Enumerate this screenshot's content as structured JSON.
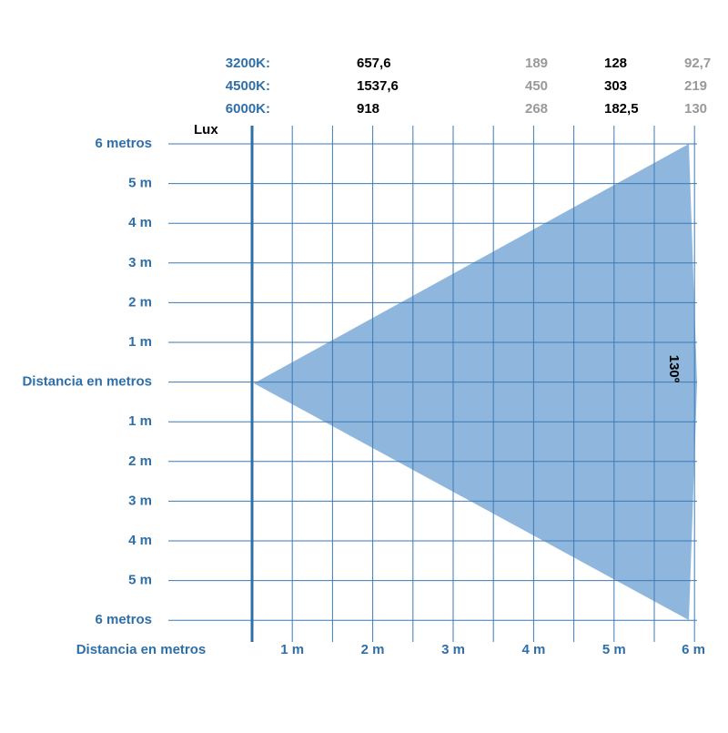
{
  "header": {
    "unit": "Lux",
    "rows": [
      {
        "label": "3200K:",
        "values": [
          "657,6",
          "189",
          "128",
          "92,7"
        ]
      },
      {
        "label": "4500K:",
        "values": [
          "1537,6",
          "450",
          "303",
          "219"
        ]
      },
      {
        "label": "6000K:",
        "values": [
          "918",
          "268",
          "182,5",
          "130"
        ]
      }
    ]
  },
  "left_axis": {
    "labels": [
      "6 metros",
      "5 m",
      "4 m",
      "3 m",
      "2 m",
      "1 m",
      "Distancia en metros",
      "1 m",
      "2 m",
      "3 m",
      "4 m",
      "5 m",
      "6 metros"
    ]
  },
  "bottom_axis": {
    "title": "Distancia en metros",
    "labels": [
      "1 m",
      "2 m",
      "3 m",
      "4 m",
      "5 m",
      "6 m"
    ]
  },
  "angle_label": "130º"
}
